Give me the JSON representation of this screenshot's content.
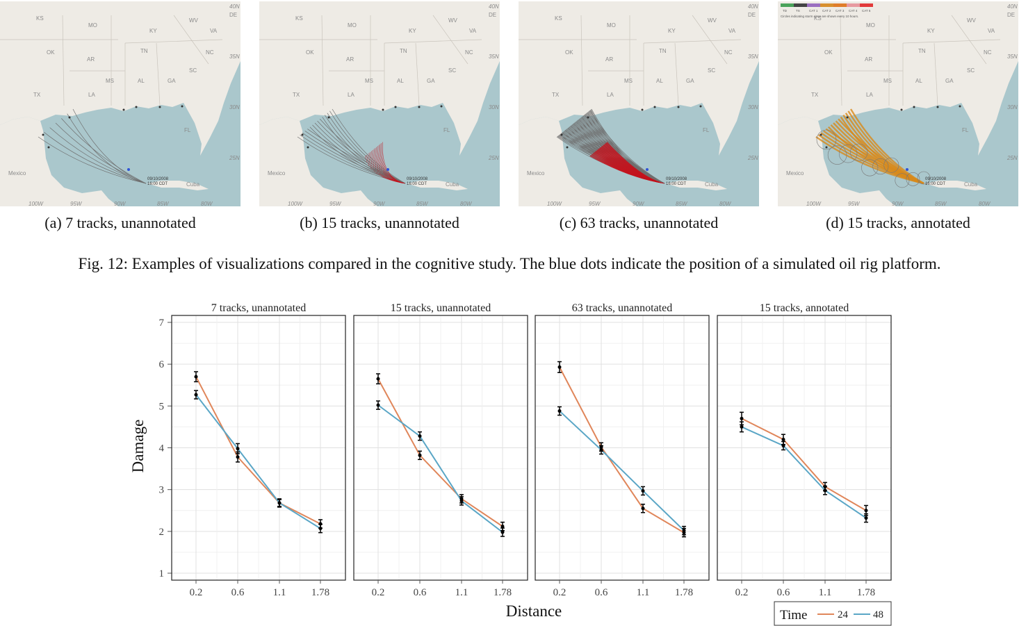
{
  "maps": [
    {
      "caption": "(a) 7 tracks, unannotated",
      "n_tracks": 7,
      "annotated": false,
      "date_label": [
        "09/10/2008",
        "16:00 CDT"
      ]
    },
    {
      "caption": "(b) 15 tracks, unannotated",
      "n_tracks": 15,
      "annotated": false,
      "date_label": [
        "09/10/2008",
        "16:00 CDT"
      ]
    },
    {
      "caption": "(c) 63 tracks, unannotated",
      "n_tracks": 63,
      "annotated": false,
      "date_label": [
        "09/10/2008",
        "16:00 CDT"
      ]
    },
    {
      "caption": "(d) 15 tracks, annotated",
      "n_tracks": 15,
      "annotated": true,
      "date_label": [
        "09/10/2008",
        "16:00 CDT"
      ],
      "legend_categories": [
        "TD",
        "TS",
        "CAT 1",
        "CAT 2",
        "CAT 3",
        "CAT 4",
        "CAT 5"
      ],
      "legend_colors": [
        "#4aa35b",
        "#444444",
        "#9b6fc0",
        "#d8902e",
        "#e07d2a",
        "#e79aa0",
        "#e23a3a"
      ],
      "legend_note": "Circles indicating storm sizes are shown every 10 hours."
    }
  ],
  "map_labels": {
    "states": [
      "KS",
      "MO",
      "KY",
      "WV",
      "VA",
      "OK",
      "AR",
      "TN",
      "NC",
      "SC",
      "MS",
      "AL",
      "GA",
      "LA",
      "TX",
      "FL"
    ],
    "regions": [
      "Mexico",
      "Cuba"
    ],
    "latitudes": [
      "40N",
      "35N",
      "30N",
      "25N"
    ],
    "longitudes": [
      "100W",
      "95W",
      "90W",
      "85W",
      "80W"
    ],
    "de_label": "DE"
  },
  "map_colors": {
    "land": "#eeebe5",
    "water": "#aac7cc",
    "track_gray": "#6f6f6f",
    "track_red": "#c4141e",
    "oil_rig": "#2f53d6",
    "annotated_track": "#d88a1a"
  },
  "figure_caption": "Fig. 12: Examples of visualizations compared in the cognitive study. The blue dots indicate the position of a simulated oil rig platform.",
  "chart_data": {
    "type": "line",
    "ylabel": "Damage",
    "xlabel": "Distance",
    "categories": [
      "0.2",
      "0.6",
      "1.1",
      "1.78"
    ],
    "ylim": [
      1,
      7
    ],
    "yticks": [
      1,
      2,
      3,
      4,
      5,
      6,
      7
    ],
    "grid": true,
    "legend": {
      "title": "Time",
      "placement": "bottom-right"
    },
    "panels": [
      {
        "title": "7 tracks, unannotated",
        "series": [
          {
            "name": "24",
            "color": "#e0865a",
            "values": [
              5.7,
              3.78,
              2.68,
              2.18
            ],
            "errors": [
              0.12,
              0.12,
              0.1,
              0.1
            ]
          },
          {
            "name": "48",
            "color": "#5aa6c6",
            "values": [
              5.27,
              3.98,
              2.68,
              2.07
            ],
            "errors": [
              0.1,
              0.12,
              0.08,
              0.1
            ]
          }
        ]
      },
      {
        "title": "15 tracks, unannotated",
        "series": [
          {
            "name": "24",
            "color": "#e0865a",
            "values": [
              5.65,
              3.82,
              2.78,
              2.12
            ],
            "errors": [
              0.12,
              0.1,
              0.1,
              0.1
            ]
          },
          {
            "name": "48",
            "color": "#5aa6c6",
            "values": [
              5.02,
              4.28,
              2.73,
              1.98
            ],
            "errors": [
              0.1,
              0.1,
              0.1,
              0.1
            ]
          }
        ]
      },
      {
        "title": "63 tracks, unannotated",
        "series": [
          {
            "name": "24",
            "color": "#e0865a",
            "values": [
              5.93,
              4.02,
              2.55,
              1.97
            ],
            "errors": [
              0.13,
              0.1,
              0.1,
              0.1
            ]
          },
          {
            "name": "48",
            "color": "#5aa6c6",
            "values": [
              4.88,
              3.95,
              2.97,
              2.02
            ],
            "errors": [
              0.1,
              0.1,
              0.1,
              0.1
            ]
          }
        ]
      },
      {
        "title": "15 tracks, annotated",
        "series": [
          {
            "name": "24",
            "color": "#e0865a",
            "values": [
              4.7,
              4.2,
              3.07,
              2.5
            ],
            "errors": [
              0.15,
              0.12,
              0.1,
              0.12
            ]
          },
          {
            "name": "48",
            "color": "#5aa6c6",
            "values": [
              4.5,
              4.05,
              2.98,
              2.32
            ],
            "errors": [
              0.12,
              0.1,
              0.1,
              0.1
            ]
          }
        ]
      }
    ]
  }
}
